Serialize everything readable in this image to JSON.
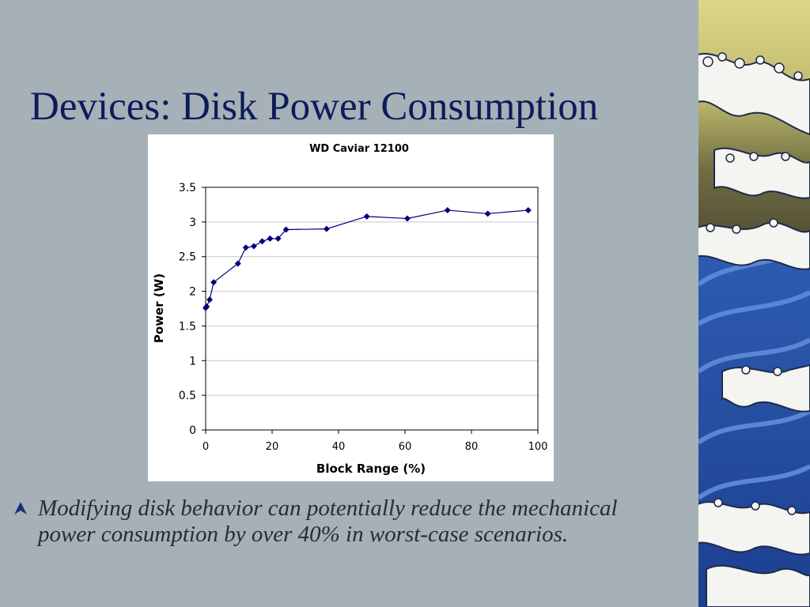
{
  "slide": {
    "title": "Devices: Disk Power Consumption",
    "bullet_text": "Modifying disk behavior can potentially reduce the mechanical power consumption by over 40% in worst-case scenarios."
  },
  "colors": {
    "background": "#a5b1b6",
    "title": "#0d1b5c",
    "series": "#00007f",
    "wave_dark_blue": "#1d3f8f",
    "wave_blue": "#3f72c8",
    "wave_foam": "#f4f4f0",
    "sky_yellow": "#d8d47e",
    "sky_olive": "#6f6d43"
  },
  "icons": {
    "bullet": "triangle-bullet-icon",
    "decoration": "great-wave-decoration"
  },
  "chart_data": {
    "type": "line",
    "title": "WD Caviar 12100",
    "xlabel": "Block Range (%)",
    "ylabel": "Power (W)",
    "xlim": [
      0,
      100
    ],
    "ylim": [
      0,
      3.5
    ],
    "xticks": [
      0,
      20,
      40,
      60,
      80,
      100
    ],
    "yticks": [
      0,
      0.5,
      1,
      1.5,
      2,
      2.5,
      3,
      3.5
    ],
    "ytick_labels": [
      "0",
      "0.5",
      "1",
      "1.5",
      "2",
      "2.5",
      "3",
      "3.5"
    ],
    "grid": true,
    "legend": "none",
    "marker": "diamond",
    "series": [
      {
        "x": [
          0,
          0.3,
          1.2,
          2.4,
          9.7,
          12.1,
          14.5,
          17,
          19.4,
          21.8,
          24.2,
          36.4,
          48.5,
          60.7,
          72.8,
          84.9,
          97.1
        ],
        "y": [
          1.76,
          1.78,
          1.88,
          2.13,
          2.4,
          2.63,
          2.65,
          2.72,
          2.76,
          2.76,
          2.89,
          2.9,
          3.08,
          3.05,
          3.17,
          3.12,
          3.17
        ]
      }
    ]
  }
}
